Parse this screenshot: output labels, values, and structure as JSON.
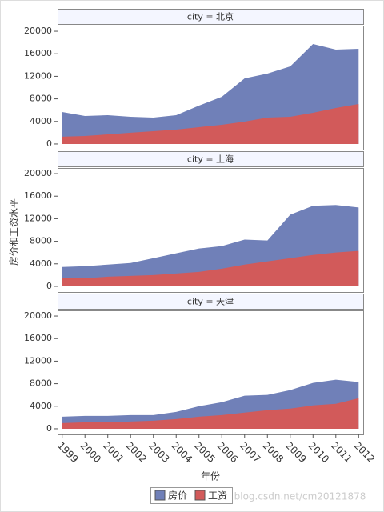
{
  "chart_data": {
    "type": "area",
    "y_label": "房价和工资水平",
    "x_label": "年份",
    "x": [
      1999,
      2000,
      2001,
      2002,
      2003,
      2004,
      2005,
      2006,
      2007,
      2008,
      2009,
      2010,
      2011,
      2012
    ],
    "xlim": [
      1998.8,
      2012.2
    ],
    "xticks": [
      1999,
      2000,
      2001,
      2002,
      2003,
      2004,
      2005,
      2006,
      2007,
      2008,
      2009,
      2010,
      2011,
      2012
    ],
    "ylim": [
      -1000,
      21000
    ],
    "yticks": [
      0,
      4000,
      8000,
      12000,
      16000,
      20000
    ],
    "series": [
      {
        "name": "房价",
        "color": "#7080b8"
      },
      {
        "name": "工资",
        "color": "#d25a5a"
      }
    ],
    "panels": [
      {
        "title": "city = 北京",
        "values": [
          [
            5670,
            4960,
            5100,
            4820,
            4680,
            5100,
            6800,
            8370,
            11630,
            12480,
            13760,
            17730,
            16740,
            16880
          ],
          [
            1280,
            1420,
            1700,
            1990,
            2270,
            2550,
            2980,
            3400,
            3970,
            4680,
            4820,
            5530,
            6380,
            7090
          ]
        ]
      },
      {
        "title": "city = 上海",
        "values": [
          [
            3430,
            3570,
            3860,
            4140,
            5000,
            5860,
            6710,
            7140,
            8290,
            8140,
            12710,
            14290,
            14430,
            14000
          ],
          [
            1430,
            1430,
            1710,
            1860,
            2000,
            2290,
            2570,
            3140,
            3860,
            4430,
            5000,
            5570,
            6000,
            6290
          ]
        ]
      },
      {
        "title": "city = 天津",
        "values": [
          [
            2140,
            2290,
            2290,
            2430,
            2430,
            3000,
            4000,
            4710,
            5860,
            6000,
            6860,
            8140,
            8710,
            8290
          ],
          [
            1000,
            1140,
            1140,
            1290,
            1430,
            1710,
            2140,
            2430,
            2860,
            3290,
            3570,
            4140,
            4430,
            5430
          ]
        ]
      }
    ],
    "watermark": "blog.csdn.net/cm20121878"
  }
}
